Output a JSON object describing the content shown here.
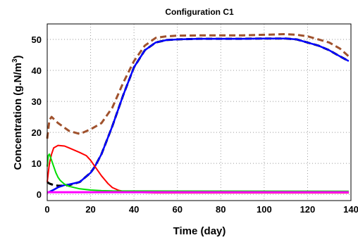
{
  "chart_data": {
    "type": "line",
    "title": "Configuration C1",
    "xlabel": "Time (day)",
    "ylabel_main": "Concentration (g.N/m",
    "ylabel_sup": "3",
    "ylabel_close": ")",
    "xlim": [
      0,
      140
    ],
    "ylim": [
      -2,
      55
    ],
    "xticks": [
      "0",
      "20",
      "40",
      "60",
      "80",
      "100",
      "120",
      "140"
    ],
    "xtick_values": [
      0,
      20,
      40,
      60,
      80,
      100,
      120,
      140
    ],
    "yticks": [
      "0",
      "10",
      "20",
      "30",
      "40",
      "50"
    ],
    "ytick_values": [
      0,
      10,
      20,
      30,
      40,
      50
    ],
    "grid": true,
    "series": [
      {
        "color": "#a0522d",
        "style": "dashed",
        "width": 3,
        "x": [
          0,
          1,
          2,
          5,
          10,
          15,
          20,
          25,
          30,
          35,
          40,
          45,
          50,
          55,
          60,
          70,
          80,
          90,
          100,
          110,
          115,
          120,
          125,
          130,
          135,
          139
        ],
        "y": [
          18,
          24,
          25,
          23,
          20.5,
          19.5,
          21,
          23,
          28,
          36,
          43,
          48,
          50.5,
          51,
          51.2,
          51.3,
          51.3,
          51.3,
          51.5,
          51.7,
          51.5,
          51,
          50,
          49,
          47,
          44.5
        ]
      },
      {
        "color": "#000000",
        "style": "dashed",
        "width": 3,
        "x": [
          0,
          1,
          3,
          5,
          8,
          10,
          15,
          20,
          22,
          25,
          30,
          35,
          40,
          45,
          50,
          55,
          60,
          70,
          80,
          90,
          100,
          110,
          115,
          120,
          125,
          130,
          135,
          139
        ],
        "y": [
          4,
          3.5,
          3,
          2.8,
          2.8,
          3,
          4,
          7,
          9,
          13,
          22,
          32,
          41,
          46.5,
          49,
          49.8,
          50,
          50.2,
          50.2,
          50.2,
          50.3,
          50.3,
          50,
          49,
          48,
          46.5,
          44.5,
          43
        ]
      },
      {
        "color": "#0000ff",
        "style": "solid",
        "width": 2.5,
        "x": [
          0,
          3,
          5,
          8,
          10,
          15,
          20,
          22,
          25,
          30,
          35,
          40,
          45,
          50,
          55,
          60,
          70,
          80,
          90,
          100,
          110,
          115,
          120,
          125,
          130,
          135,
          139
        ],
        "y": [
          0.5,
          1.5,
          2.3,
          3,
          3.2,
          4,
          7,
          9,
          13,
          22,
          32,
          41,
          46.5,
          49,
          49.8,
          50,
          50.2,
          50.2,
          50.2,
          50.3,
          50.3,
          50,
          49,
          48,
          46.5,
          44.5,
          43
        ]
      },
      {
        "color": "#ff0000",
        "style": "solid",
        "width": 2,
        "x": [
          0,
          1,
          2,
          3,
          5,
          8,
          10,
          15,
          18,
          20,
          22,
          25,
          28,
          30,
          33,
          35,
          38,
          40,
          45,
          50,
          139
        ],
        "y": [
          4,
          10,
          13,
          15,
          15.8,
          15.6,
          15,
          13.5,
          12.5,
          11,
          9,
          6,
          3.5,
          2.2,
          1.3,
          1,
          0.8,
          0.7,
          0.6,
          0.5,
          0.5
        ]
      },
      {
        "color": "#00dd00",
        "style": "solid",
        "width": 2,
        "x": [
          0,
          0.5,
          1,
          2,
          3,
          4,
          5,
          6,
          8,
          10,
          15,
          20,
          25,
          30,
          139
        ],
        "y": [
          9,
          12.5,
          13,
          11,
          9,
          7,
          5.5,
          4.5,
          3.3,
          2.6,
          1.8,
          1.4,
          1.2,
          1.1,
          1.0
        ]
      },
      {
        "color": "#ff00ff",
        "style": "solid",
        "width": 3,
        "x": [
          0,
          20,
          40,
          60,
          80,
          100,
          120,
          139
        ],
        "y": [
          0.7,
          0.7,
          0.7,
          0.7,
          0.7,
          0.7,
          0.7,
          0.7
        ]
      }
    ]
  }
}
